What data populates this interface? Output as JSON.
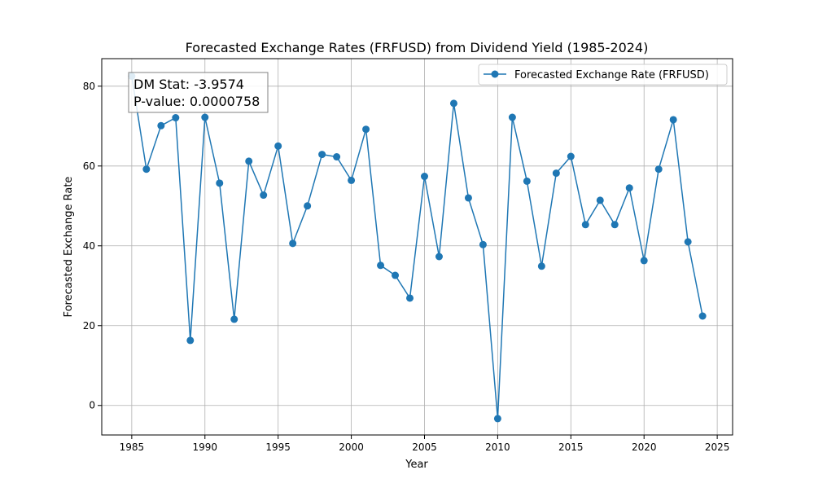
{
  "chart_data": {
    "type": "line",
    "title": "Forecasted Exchange Rates (FRFUSD) from Dividend Yield (1985-2024)",
    "xlabel": "Year",
    "ylabel": "Forecasted Exchange Rate",
    "xlim": [
      1982.95,
      2026.05
    ],
    "ylim": [
      -7.4,
      86.9
    ],
    "x_ticks": [
      1985,
      1990,
      1995,
      2000,
      2005,
      2010,
      2015,
      2020,
      2025
    ],
    "y_ticks": [
      0,
      20,
      40,
      60,
      80
    ],
    "grid": true,
    "legend_position": "top-right",
    "series": [
      {
        "name": "Forecasted Exchange Rate (FRFUSD)",
        "color": "#1f77b4",
        "marker": "circle",
        "x": [
          1985,
          1986,
          1987,
          1988,
          1989,
          1990,
          1991,
          1992,
          1993,
          1994,
          1995,
          1996,
          1997,
          1998,
          1999,
          2000,
          2001,
          2002,
          2003,
          2004,
          2005,
          2006,
          2007,
          2008,
          2009,
          2010,
          2011,
          2012,
          2013,
          2014,
          2015,
          2016,
          2017,
          2018,
          2019,
          2020,
          2021,
          2022,
          2023,
          2024
        ],
        "values": [
          82.5,
          59.2,
          70.1,
          72.1,
          16.3,
          72.2,
          55.7,
          21.6,
          61.2,
          52.7,
          65.0,
          40.6,
          50.0,
          62.9,
          62.3,
          56.4,
          69.2,
          35.1,
          32.6,
          26.9,
          57.4,
          37.3,
          75.7,
          52.0,
          40.3,
          -3.3,
          72.2,
          56.2,
          34.9,
          58.2,
          62.4,
          45.3,
          51.4,
          45.3,
          54.5,
          36.3,
          59.2,
          71.6,
          41.0,
          22.4
        ]
      }
    ],
    "annotation": {
      "lines": [
        "DM Stat: -3.9574",
        "P-value: 0.0000758"
      ]
    }
  }
}
